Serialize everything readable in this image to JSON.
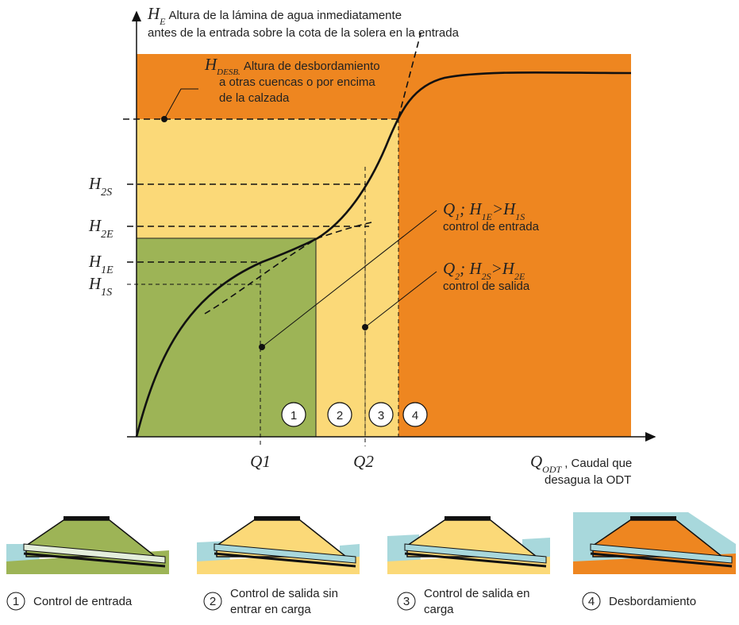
{
  "y_axis_title": {
    "runs": [
      {
        "t": "H"
      },
      {
        "t": "E",
        "sub": true
      }
    ],
    "lines": [
      "Altura de la lámina de agua inmediatamente",
      "antes de la entrada sobre la cota de la solera en la entrada"
    ]
  },
  "overflow_label": {
    "runs": [
      {
        "t": "H"
      },
      {
        "t": "DESB.",
        "sub": true
      }
    ],
    "lines": [
      "Altura de desbordamiento",
      "a otras cuencas o por encima",
      "de la calzada"
    ]
  },
  "levels": [
    {
      "runs": [
        {
          "t": "H"
        },
        {
          "t": "2S",
          "sub": true
        }
      ]
    },
    {
      "runs": [
        {
          "t": "H"
        },
        {
          "t": "2E",
          "sub": true
        }
      ]
    },
    {
      "runs": [
        {
          "t": "H"
        },
        {
          "t": "1E",
          "sub": true
        }
      ]
    },
    {
      "runs": [
        {
          "t": "H"
        },
        {
          "t": "1S",
          "sub": true
        }
      ]
    }
  ],
  "annotations": [
    {
      "runs": [
        {
          "t": "Q"
        },
        {
          "t": "1",
          "sub": true
        },
        {
          "t": "; H"
        },
        {
          "t": "1E",
          "sub": true
        },
        {
          "t": ">H"
        },
        {
          "t": "1S",
          "sub": true
        }
      ],
      "lines": [
        "control de entrada"
      ]
    },
    {
      "runs": [
        {
          "t": "Q"
        },
        {
          "t": "2",
          "sub": true
        },
        {
          "t": "; H"
        },
        {
          "t": "2S",
          "sub": true
        },
        {
          "t": ">H"
        },
        {
          "t": "2E",
          "sub": true
        }
      ],
      "lines": [
        "control de salida"
      ]
    }
  ],
  "x_labels": [
    "Q1",
    "Q2"
  ],
  "regions": [
    "1",
    "2",
    "3",
    "4"
  ],
  "x_axis_title": {
    "runs": [
      {
        "t": "Q"
      },
      {
        "t": "ODT",
        "sub": true
      }
    ],
    "lines": [
      ", Caudal que",
      "desagua la ODT"
    ]
  },
  "legend": [
    {
      "number": "1",
      "lines": [
        "Control de entrada"
      ]
    },
    {
      "number": "2",
      "lines": [
        "Control de salida sin",
        "entrar en carga"
      ]
    },
    {
      "number": "3",
      "lines": [
        "Control de salida en",
        "carga"
      ]
    },
    {
      "number": "4",
      "lines": [
        "Desbordamiento"
      ]
    }
  ]
}
